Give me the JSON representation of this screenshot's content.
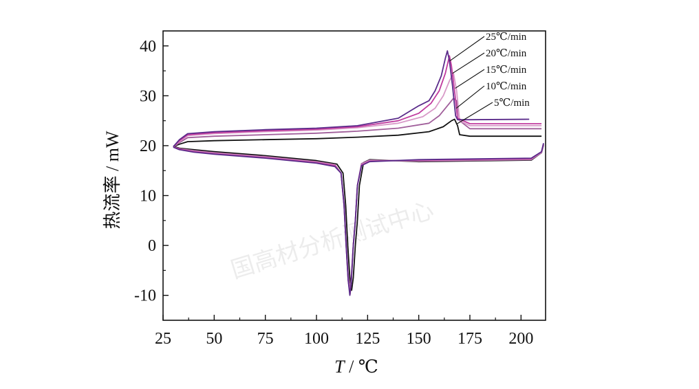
{
  "watermark": "国高材分析测试中心",
  "chart_data": {
    "type": "line",
    "xlabel_var": "T",
    "xlabel_rest": " / ℃",
    "ylabel": "热流率 / mW",
    "xlim": [
      25,
      212
    ],
    "ylim": [
      -15,
      43
    ],
    "xticks": [
      "25",
      "50",
      "75",
      "100",
      "125",
      "150",
      "175",
      "200"
    ],
    "yticks": [
      "-10",
      "0",
      "10",
      "20",
      "30",
      "40"
    ],
    "grid": false,
    "legend_placement": "top-right, labels beside peaks",
    "series": [
      {
        "name": "25℃/min",
        "color": "#5a2b8a",
        "heating": [
          [
            30,
            19.8
          ],
          [
            33,
            21.2
          ],
          [
            37,
            22.4
          ],
          [
            50,
            22.8
          ],
          [
            75,
            23.2
          ],
          [
            100,
            23.5
          ],
          [
            120,
            24.0
          ],
          [
            140,
            25.5
          ],
          [
            148,
            27.5
          ],
          [
            150,
            28.0
          ],
          [
            155,
            29.0
          ],
          [
            158,
            31.0
          ],
          [
            161,
            34.0
          ],
          [
            163,
            37.5
          ],
          [
            164,
            39.0
          ],
          [
            165,
            37.0
          ],
          [
            166.5,
            32.0
          ],
          [
            168,
            26.0
          ],
          [
            169,
            25.2
          ],
          [
            175,
            25.2
          ],
          [
            204,
            25.3
          ]
        ],
        "cooling": [
          [
            211,
            20.5
          ],
          [
            210,
            18.8
          ],
          [
            205,
            17.5
          ],
          [
            150,
            17.2
          ],
          [
            126,
            16.8
          ],
          [
            122,
            16.0
          ],
          [
            120,
            12.0
          ],
          [
            119,
            5.0
          ],
          [
            118,
            0.0
          ],
          [
            117,
            -7.5
          ],
          [
            116.3,
            -10.0
          ],
          [
            115.5,
            -7.0
          ],
          [
            114.5,
            0.0
          ],
          [
            113.5,
            8.0
          ],
          [
            112,
            14.5
          ],
          [
            109,
            15.8
          ],
          [
            100,
            16.5
          ],
          [
            75,
            17.5
          ],
          [
            50,
            18.3
          ],
          [
            40,
            18.7
          ],
          [
            33,
            19.2
          ],
          [
            30,
            19.7
          ]
        ]
      },
      {
        "name": "20℃/min",
        "color": "#c03a9e",
        "heating": [
          [
            30,
            19.8
          ],
          [
            33,
            21.0
          ],
          [
            37,
            22.2
          ],
          [
            50,
            22.6
          ],
          [
            75,
            23.0
          ],
          [
            100,
            23.3
          ],
          [
            120,
            23.8
          ],
          [
            140,
            25.0
          ],
          [
            150,
            26.5
          ],
          [
            156,
            28.5
          ],
          [
            160,
            31.0
          ],
          [
            163,
            34.5
          ],
          [
            165,
            38.0
          ],
          [
            166,
            36.0
          ],
          [
            167.5,
            31.0
          ],
          [
            169,
            25.5
          ],
          [
            175,
            24.4
          ],
          [
            210,
            24.4
          ]
        ],
        "cooling": [
          [
            211,
            20.4
          ],
          [
            210,
            18.8
          ],
          [
            205,
            17.4
          ],
          [
            150,
            17.1
          ],
          [
            126,
            16.9
          ],
          [
            122,
            16.1
          ],
          [
            120,
            12.0
          ],
          [
            119,
            5.0
          ],
          [
            118,
            0.0
          ],
          [
            117,
            -7.5
          ],
          [
            116.4,
            -9.8
          ],
          [
            115.5,
            -7.0
          ],
          [
            114.5,
            0.0
          ],
          [
            113.5,
            8.0
          ],
          [
            112,
            14.5
          ],
          [
            109,
            16.0
          ],
          [
            100,
            16.6
          ],
          [
            75,
            17.6
          ],
          [
            50,
            18.4
          ],
          [
            40,
            18.8
          ],
          [
            33,
            19.3
          ],
          [
            30,
            19.7
          ]
        ]
      },
      {
        "name": "15℃/min",
        "color": "#d89ac8",
        "heating": [
          [
            30,
            19.8
          ],
          [
            33,
            20.8
          ],
          [
            37,
            22.0
          ],
          [
            50,
            22.4
          ],
          [
            75,
            22.8
          ],
          [
            100,
            23.1
          ],
          [
            120,
            23.6
          ],
          [
            140,
            24.5
          ],
          [
            152,
            25.8
          ],
          [
            158,
            27.5
          ],
          [
            162,
            30.0
          ],
          [
            165,
            33.0
          ],
          [
            167,
            34.5
          ],
          [
            168.5,
            31.0
          ],
          [
            170,
            25.0
          ],
          [
            175,
            24.0
          ],
          [
            210,
            24.0
          ]
        ],
        "cooling": [
          [
            211,
            20.3
          ],
          [
            210,
            18.7
          ],
          [
            205,
            17.3
          ],
          [
            150,
            17.0
          ],
          [
            126,
            17.0
          ],
          [
            122,
            16.2
          ],
          [
            120,
            12.0
          ],
          [
            119,
            5.0
          ],
          [
            118,
            0.0
          ],
          [
            117,
            -7.0
          ],
          [
            116.5,
            -9.5
          ],
          [
            115.5,
            -7.0
          ],
          [
            114.5,
            0.0
          ],
          [
            113.5,
            8.0
          ],
          [
            112,
            14.5
          ],
          [
            109,
            16.1
          ],
          [
            100,
            16.7
          ],
          [
            75,
            17.7
          ],
          [
            50,
            18.5
          ],
          [
            40,
            18.9
          ],
          [
            33,
            19.3
          ],
          [
            30,
            19.7
          ]
        ]
      },
      {
        "name": "10℃/min",
        "color": "#a05e9a",
        "heating": [
          [
            30,
            19.8
          ],
          [
            33,
            20.6
          ],
          [
            37,
            21.6
          ],
          [
            50,
            21.9
          ],
          [
            75,
            22.2
          ],
          [
            100,
            22.5
          ],
          [
            120,
            22.9
          ],
          [
            140,
            23.5
          ],
          [
            155,
            24.5
          ],
          [
            160,
            26.0
          ],
          [
            164,
            28.0
          ],
          [
            167,
            29.5
          ],
          [
            168.5,
            29.0
          ],
          [
            170,
            25.0
          ],
          [
            175,
            23.4
          ],
          [
            210,
            23.4
          ]
        ],
        "cooling": [
          [
            211,
            20.2
          ],
          [
            210,
            18.6
          ],
          [
            205,
            17.2
          ],
          [
            150,
            16.9
          ],
          [
            126,
            17.1
          ],
          [
            122,
            16.4
          ],
          [
            120,
            12.0
          ],
          [
            119,
            5.0
          ],
          [
            118,
            0.0
          ],
          [
            117,
            -6.5
          ],
          [
            116.6,
            -9.0
          ],
          [
            115.6,
            -6.5
          ],
          [
            114.6,
            0.0
          ],
          [
            113.6,
            8.0
          ],
          [
            112,
            14.5
          ],
          [
            109,
            16.2
          ],
          [
            100,
            16.8
          ],
          [
            75,
            17.8
          ],
          [
            50,
            18.6
          ],
          [
            40,
            19.0
          ],
          [
            33,
            19.4
          ],
          [
            30,
            19.8
          ]
        ]
      },
      {
        "name": "5℃/min",
        "color": "#111111",
        "heating": [
          [
            30,
            19.8
          ],
          [
            33,
            20.3
          ],
          [
            37,
            20.8
          ],
          [
            50,
            21.0
          ],
          [
            75,
            21.2
          ],
          [
            100,
            21.4
          ],
          [
            120,
            21.7
          ],
          [
            140,
            22.1
          ],
          [
            155,
            22.8
          ],
          [
            162,
            23.8
          ],
          [
            166,
            25.0
          ],
          [
            167.5,
            25.3
          ],
          [
            169,
            24.0
          ],
          [
            170,
            22.2
          ],
          [
            175,
            21.9
          ],
          [
            210,
            21.9
          ]
        ],
        "cooling": [
          [
            211,
            20.1
          ],
          [
            210,
            18.6
          ],
          [
            205,
            17.1
          ],
          [
            150,
            16.8
          ],
          [
            126,
            17.2
          ],
          [
            123,
            16.6
          ],
          [
            121,
            12.0
          ],
          [
            120,
            5.0
          ],
          [
            119,
            0.0
          ],
          [
            118,
            -6.5
          ],
          [
            117.2,
            -9.0
          ],
          [
            116.3,
            -6.5
          ],
          [
            115.3,
            0.0
          ],
          [
            114.3,
            8.0
          ],
          [
            113,
            14.5
          ],
          [
            110,
            16.3
          ],
          [
            100,
            17.0
          ],
          [
            75,
            18.0
          ],
          [
            50,
            18.8
          ],
          [
            40,
            19.2
          ],
          [
            33,
            19.5
          ],
          [
            30,
            19.9
          ]
        ]
      }
    ]
  }
}
